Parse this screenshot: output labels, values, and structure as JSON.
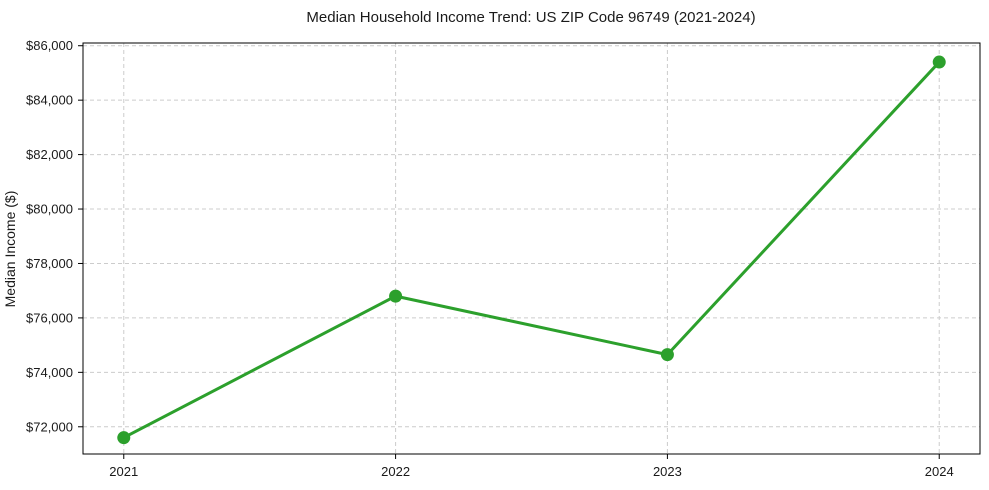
{
  "chart_data": {
    "type": "line",
    "title": "Median Household Income Trend: US ZIP Code 96749 (2021-2024)",
    "xlabel": "",
    "ylabel": "Median Income ($)",
    "series": [
      {
        "name": "Median household income",
        "x": [
          2021,
          2022,
          2023,
          2024
        ],
        "values": [
          71600,
          76800,
          74650,
          85400
        ]
      }
    ],
    "xlim": [
      2020.85,
      2024.15
    ],
    "ylim": [
      71000,
      86100
    ],
    "xticks": {
      "values": [
        2021,
        2022,
        2023,
        2024
      ],
      "labels": [
        "2021",
        "2022",
        "2023",
        "2024"
      ]
    },
    "yticks": {
      "values": [
        72000,
        74000,
        76000,
        78000,
        80000,
        82000,
        84000,
        86000
      ],
      "labels": [
        "$72,000",
        "$74,000",
        "$76,000",
        "$78,000",
        "$80,000",
        "$82,000",
        "$84,000",
        "$86,000"
      ]
    },
    "grid": true,
    "grid_style": "dashed",
    "legend_position": "none",
    "colors": {
      "line": "#2ca02c",
      "marker": "#2ca02c",
      "grid": "#cccccc",
      "axis": "#000000",
      "text": "#1a1a1a",
      "background": "#ffffff"
    }
  }
}
